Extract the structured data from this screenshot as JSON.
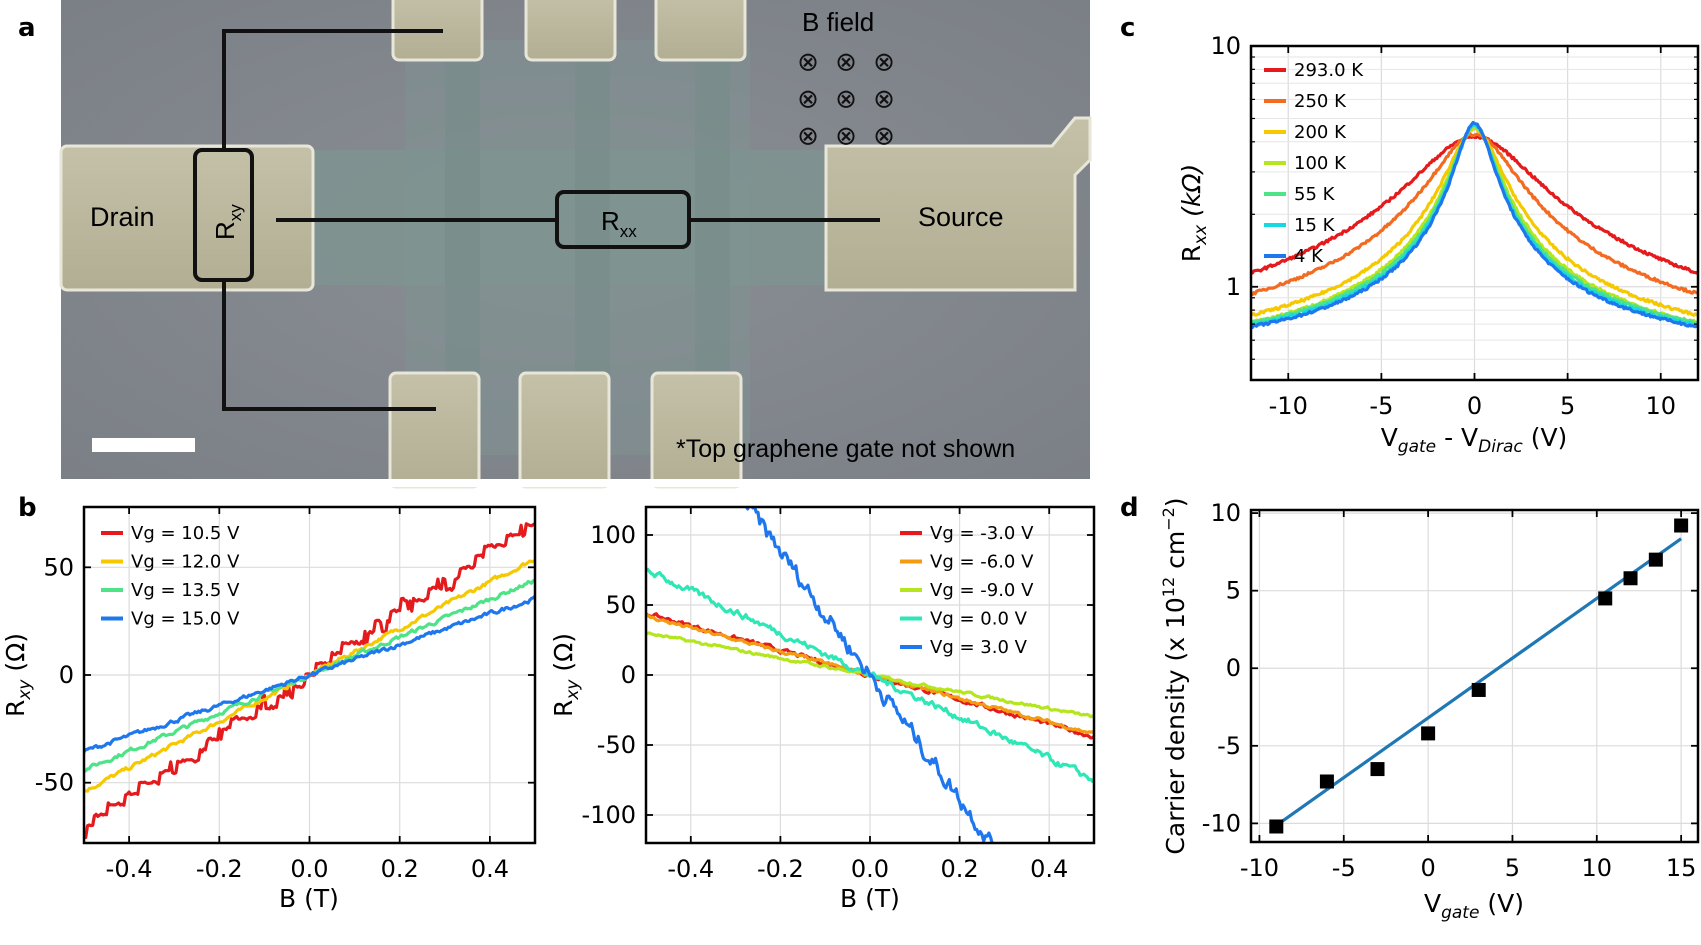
{
  "panels": {
    "a": "a",
    "b": "b",
    "c": "c",
    "d": "d"
  },
  "sem": {
    "drain": "Drain",
    "source": "Source",
    "rxy": "R",
    "rxy_sub": "xy",
    "rxx": "R",
    "rxx_sub": "xx",
    "bfield": "B field",
    "bsymbol": "⊗",
    "note": "*Top graphene gate not shown"
  },
  "chart_data": [
    {
      "id": "b_left",
      "type": "line",
      "xlabel": "B (T)",
      "ylabel": "R",
      "ylabel_sub": "xy",
      "ylabel_unit": "(Ω)",
      "xlim": [
        -0.5,
        0.5
      ],
      "ylim": [
        -78,
        78
      ],
      "xticks": [
        -0.4,
        -0.2,
        0.0,
        0.2,
        0.4
      ],
      "xtick_labels": [
        "-0.4",
        "-0.2",
        "0.0",
        "0.2",
        "0.4"
      ],
      "yticks": [
        -50,
        0,
        50
      ],
      "ytick_labels": [
        "-50",
        "0",
        "50"
      ],
      "legend_position": "top-left",
      "series": [
        {
          "name": "Vg = 10.5 V",
          "slope": 143,
          "offset": 0,
          "noise": 2.0,
          "stair": true,
          "color": "#e41a1c"
        },
        {
          "name": "Vg = 12.0 V",
          "slope": 108,
          "offset": 0,
          "noise": 0.8,
          "stair": false,
          "color": "#f5c800"
        },
        {
          "name": "Vg = 13.5 V",
          "slope": 88,
          "offset": 0,
          "noise": 0.8,
          "stair": false,
          "color": "#4ee387"
        },
        {
          "name": "Vg = 15.0 V",
          "slope": 71,
          "offset": 0,
          "noise": 0.8,
          "stair": false,
          "color": "#1f77ee"
        }
      ]
    },
    {
      "id": "b_right",
      "type": "line",
      "xlabel": "B (T)",
      "ylabel": "R",
      "ylabel_sub": "xy",
      "ylabel_unit": "(Ω)",
      "xlim": [
        -0.5,
        0.5
      ],
      "ylim": [
        -120,
        120
      ],
      "xticks": [
        -0.4,
        -0.2,
        0.0,
        0.2,
        0.4
      ],
      "xtick_labels": [
        "-0.4",
        "-0.2",
        "0.0",
        "0.2",
        "0.4"
      ],
      "yticks": [
        -100,
        -50,
        0,
        50,
        100
      ],
      "ytick_labels": [
        "-100",
        "-50",
        "0",
        "50",
        "100"
      ],
      "legend_position": "top-right",
      "series": [
        {
          "name": "Vg = -3.0 V",
          "slope": -88,
          "offset": 0,
          "noise": 1.2,
          "stair": false,
          "color": "#e41a1c"
        },
        {
          "name": "Vg = -6.0 V",
          "slope": -84,
          "offset": 0,
          "noise": 1.0,
          "stair": false,
          "color": "#f39c12"
        },
        {
          "name": "Vg = -9.0 V",
          "slope": -60,
          "offset": 0,
          "noise": 0.8,
          "stair": false,
          "color": "#b5e61d"
        },
        {
          "name": "Vg = 0.0 V",
          "slope": -150,
          "offset": 0,
          "noise": 2.0,
          "stair": false,
          "color": "#2fe6b6"
        },
        {
          "name": "Vg = 3.0 V",
          "slope": -440,
          "offset": 0,
          "noise": 5.0,
          "stair": false,
          "color": "#1f77ee"
        }
      ]
    },
    {
      "id": "c",
      "type": "line",
      "xlabel": "V",
      "xlabel_sub1": "gate",
      "xlabel_mid": " - V",
      "xlabel_sub2": "Dirac",
      "xlabel_unit": " (V)",
      "ylabel": "R",
      "ylabel_sub": "xx",
      "ylabel_unit": "(kΩ)",
      "yscale": "log",
      "xlim": [
        -12,
        12
      ],
      "ylim": [
        0.41,
        10
      ],
      "xticks": [
        -10,
        -5,
        0,
        5,
        10
      ],
      "xtick_labels": [
        "-10",
        "-5",
        "0",
        "5",
        "10"
      ],
      "yticks": [
        1,
        10
      ],
      "ytick_labels": [
        "1",
        "10"
      ],
      "legend_position": "top-left",
      "series": [
        {
          "name": "293.0 K",
          "peak": 4.2,
          "gamma": 2.9,
          "background": 0.36,
          "color": "#e41a1c"
        },
        {
          "name": "250 K",
          "peak": 4.3,
          "gamma": 2.0,
          "background": 0.4,
          "color": "#f26b21"
        },
        {
          "name": "200 K",
          "peak": 4.5,
          "gamma": 1.3,
          "background": 0.41,
          "color": "#f5c800"
        },
        {
          "name": "100 K",
          "peak": 4.6,
          "gamma": 1.1,
          "background": 0.41,
          "color": "#b5e61d"
        },
        {
          "name": "55 K",
          "peak": 4.7,
          "gamma": 1.0,
          "background": 0.43,
          "color": "#4ee387"
        },
        {
          "name": "15 K",
          "peak": 4.7,
          "gamma": 0.95,
          "background": 0.43,
          "color": "#17d7e0"
        },
        {
          "name": "4 K",
          "peak": 4.8,
          "gamma": 0.9,
          "background": 0.43,
          "color": "#1f77ee"
        }
      ]
    },
    {
      "id": "d",
      "type": "scatter",
      "xlabel": "V",
      "xlabel_sub": "gate",
      "xlabel_unit": " (V)",
      "ylabel": "Carrier density (x 10",
      "ylabel_sup": "12",
      "ylabel_mid": " cm",
      "ylabel_sup2": "−2",
      "ylabel_end": ")",
      "xlim": [
        -10.5,
        16
      ],
      "ylim": [
        -11.2,
        10.2
      ],
      "xticks": [
        -10,
        -5,
        0,
        5,
        10,
        15
      ],
      "xtick_labels": [
        "-10",
        "-5",
        "0",
        "5",
        "10",
        "15"
      ],
      "yticks": [
        -10,
        -5,
        0,
        5,
        10
      ],
      "ytick_labels": [
        "-10",
        "-5",
        "0",
        "5",
        "10"
      ],
      "points": [
        {
          "x": -9,
          "y": -10.2
        },
        {
          "x": -6,
          "y": -7.3
        },
        {
          "x": -3,
          "y": -6.5
        },
        {
          "x": 0,
          "y": -4.2
        },
        {
          "x": 3,
          "y": -1.4
        },
        {
          "x": 10.5,
          "y": 4.5
        },
        {
          "x": 12,
          "y": 5.8
        },
        {
          "x": 13.5,
          "y": 7.0
        },
        {
          "x": 15,
          "y": 9.2
        }
      ],
      "fit": {
        "slope": 0.77,
        "intercept": -3.2,
        "x_range": [
          -9,
          15
        ],
        "color": "#1f77b4"
      },
      "marker_color": "#000000"
    }
  ]
}
